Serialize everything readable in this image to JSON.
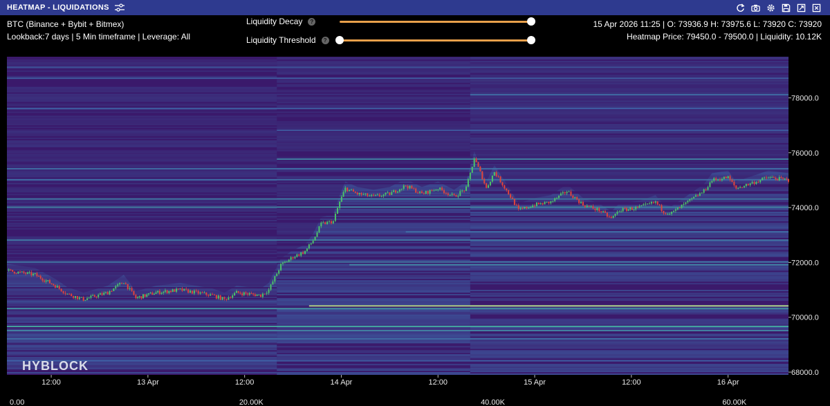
{
  "window": {
    "title": "HEATMAP - LIQUIDATIONS",
    "tune_icon": "sliders-icon",
    "tools": [
      "refresh-icon",
      "camera-icon",
      "gear-icon",
      "save-icon",
      "expand-icon",
      "close-icon"
    ]
  },
  "info": {
    "market": "BTC (Binance + Bybit + Bitmex)",
    "settings": "Lookback:7 days | 5 Min timeframe | Leverage: All",
    "ohlc": "15 Apr 2026 11:25 | O: 73936.9 H: 73975.6 L: 73920 C: 73920",
    "heatmap": "Heatmap Price: 79450.0 - 79500.0 | Liquidity: 10.12K"
  },
  "controls": {
    "decay_label": "Liquidity Decay",
    "decay_value": [
      0,
      1
    ],
    "threshold_label": "Liquidity Threshold",
    "threshold_value": [
      0,
      1
    ]
  },
  "watermark": "HYBLOCK",
  "chart_data": {
    "type": "heatmap",
    "overlay": "candlestick",
    "y_ticks": [
      "68000.0",
      "70000.0",
      "72000.0",
      "74000.0",
      "76000.0",
      "78000.0"
    ],
    "y_tick_values": [
      68000,
      70000,
      72000,
      74000,
      76000,
      78000
    ],
    "ylim": [
      67900,
      79500
    ],
    "x_ticks": [
      "12:00",
      "13 Apr",
      "12:00",
      "14 Apr",
      "12:00",
      "15 Apr",
      "12:00",
      "16 Apr"
    ],
    "x_tick_hours": [
      12,
      24,
      36,
      48,
      60,
      72,
      84,
      96
    ],
    "xlim_hours": [
      6.5,
      103.5
    ],
    "color_scale_ticks": [
      "0.00",
      "20.00K",
      "40.00K",
      "60.00K"
    ],
    "color_scale_values": [
      0,
      20000,
      40000,
      60000
    ],
    "colors": {
      "low": "#3b1a6b",
      "mid": "#3f66a8",
      "high": "#48c7a0",
      "max": "#f5f07a",
      "up": "#4cc36a",
      "down": "#e0443c"
    },
    "price_path": [
      {
        "h": 6.5,
        "p": 71700
      },
      {
        "h": 10,
        "p": 71550
      },
      {
        "h": 12.5,
        "p": 71150
      },
      {
        "h": 14,
        "p": 70850
      },
      {
        "h": 16,
        "p": 70650
      },
      {
        "h": 19,
        "p": 70900
      },
      {
        "h": 21,
        "p": 71300
      },
      {
        "h": 22.5,
        "p": 70700
      },
      {
        "h": 25,
        "p": 70900
      },
      {
        "h": 28,
        "p": 71000
      },
      {
        "h": 30,
        "p": 70900
      },
      {
        "h": 32,
        "p": 70800
      },
      {
        "h": 33.5,
        "p": 70650
      },
      {
        "h": 35,
        "p": 70900
      },
      {
        "h": 38,
        "p": 70800
      },
      {
        "h": 39,
        "p": 71000
      },
      {
        "h": 40.5,
        "p": 71900
      },
      {
        "h": 42,
        "p": 72200
      },
      {
        "h": 43.5,
        "p": 72400
      },
      {
        "h": 44.5,
        "p": 72800
      },
      {
        "h": 45.5,
        "p": 73400
      },
      {
        "h": 47,
        "p": 73500
      },
      {
        "h": 47.8,
        "p": 74200
      },
      {
        "h": 48.5,
        "p": 74700
      },
      {
        "h": 50,
        "p": 74500
      },
      {
        "h": 52,
        "p": 74400
      },
      {
        "h": 54,
        "p": 74500
      },
      {
        "h": 56,
        "p": 74800
      },
      {
        "h": 58,
        "p": 74500
      },
      {
        "h": 60,
        "p": 74700
      },
      {
        "h": 62,
        "p": 74400
      },
      {
        "h": 63.5,
        "p": 74700
      },
      {
        "h": 64.5,
        "p": 75800
      },
      {
        "h": 65.5,
        "p": 75100
      },
      {
        "h": 66,
        "p": 74700
      },
      {
        "h": 67,
        "p": 75300
      },
      {
        "h": 69,
        "p": 74400
      },
      {
        "h": 70,
        "p": 73900
      },
      {
        "h": 72,
        "p": 74100
      },
      {
        "h": 74,
        "p": 74200
      },
      {
        "h": 76,
        "p": 74600
      },
      {
        "h": 78,
        "p": 74100
      },
      {
        "h": 80,
        "p": 73900
      },
      {
        "h": 81.5,
        "p": 73600
      },
      {
        "h": 82.5,
        "p": 73900
      },
      {
        "h": 85,
        "p": 74000
      },
      {
        "h": 87,
        "p": 74200
      },
      {
        "h": 88,
        "p": 73850
      },
      {
        "h": 89,
        "p": 73800
      },
      {
        "h": 91,
        "p": 74200
      },
      {
        "h": 93,
        "p": 74600
      },
      {
        "h": 94,
        "p": 75000
      },
      {
        "h": 96,
        "p": 75100
      },
      {
        "h": 97,
        "p": 74700
      },
      {
        "h": 99,
        "p": 74900
      },
      {
        "h": 101,
        "p": 75100
      },
      {
        "h": 103.5,
        "p": 75000
      }
    ],
    "liquidity_bands": [
      {
        "p": 70400,
        "s": 0.95,
        "from": 44
      },
      {
        "p": 70300,
        "s": 0.65,
        "from": 6.5
      },
      {
        "p": 69650,
        "s": 0.75,
        "from": 6.5
      },
      {
        "p": 69500,
        "s": 0.6,
        "from": 6.5
      },
      {
        "p": 69200,
        "s": 0.5,
        "from": 6.5
      },
      {
        "p": 68400,
        "s": 0.45,
        "from": 6.5
      },
      {
        "p": 71900,
        "s": 0.6,
        "from": 49
      },
      {
        "p": 72000,
        "s": 0.55,
        "from": 6.5
      },
      {
        "p": 72800,
        "s": 0.55,
        "from": 6.5
      },
      {
        "p": 73100,
        "s": 0.5,
        "from": 56
      },
      {
        "p": 74000,
        "s": 0.6,
        "from": 6.5
      },
      {
        "p": 74300,
        "s": 0.55,
        "from": 6.5
      },
      {
        "p": 75000,
        "s": 0.5,
        "from": 6.5
      },
      {
        "p": 75400,
        "s": 0.5,
        "from": 6.5
      },
      {
        "p": 75750,
        "s": 0.6,
        "from": 40
      },
      {
        "p": 76800,
        "s": 0.45,
        "from": 40
      },
      {
        "p": 77600,
        "s": 0.45,
        "from": 6.5
      },
      {
        "p": 78100,
        "s": 0.5,
        "from": 64
      },
      {
        "p": 78700,
        "s": 0.4,
        "from": 6.5
      },
      {
        "p": 79100,
        "s": 0.35,
        "from": 6.5
      }
    ]
  }
}
